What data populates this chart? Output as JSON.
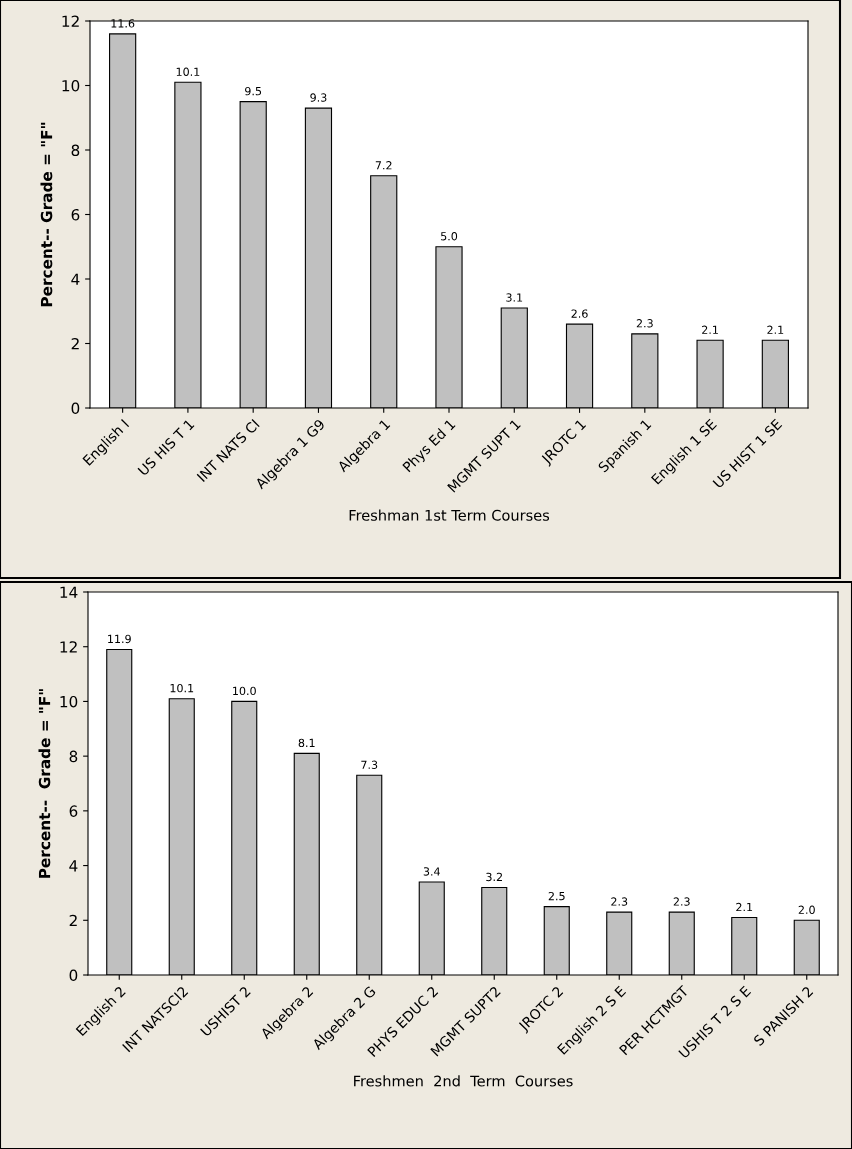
{
  "chart_data": [
    {
      "type": "bar",
      "xlabel": "Freshman 1st Term Courses",
      "ylabel": "Percent-- Grade = \"F\"",
      "categories": [
        "English I",
        "US HIS T 1",
        "INT NATS CI",
        "Algebra 1 G9",
        "Algebra 1",
        "Phys Ed 1",
        "MGMT SUPT 1",
        "JROTC 1",
        "Spanish 1",
        "English 1 SE",
        "US HIST 1 SE"
      ],
      "values": [
        11.6,
        10.1,
        9.5,
        9.3,
        7.2,
        5.0,
        3.1,
        2.6,
        2.3,
        2.1,
        2.1
      ],
      "value_labels": [
        "11.6",
        "10.1",
        "9.5",
        "9.3",
        "7.2",
        "5.0",
        "3.1",
        "2.6",
        "2.3",
        "2.1",
        "2.1"
      ],
      "color": "#c0c0c0",
      "ylim": [
        0,
        12
      ],
      "yticks": [
        0,
        2,
        4,
        6,
        8,
        10,
        12
      ],
      "grid": false
    },
    {
      "type": "bar",
      "xlabel": "Freshmen  2nd  Term  Courses",
      "ylabel": "Percent--  Grade = \"F\"",
      "categories": [
        "English 2",
        "INT NATSCI2",
        "USHIST 2",
        "Algebra 2",
        "Algebra 2 G",
        "PHYS EDUC 2",
        "MGMT SUPT2",
        "JROTC 2",
        "English 2 S E",
        "PER HCTMGT",
        "USHIS T 2 S E",
        "S PANISH 2"
      ],
      "values": [
        11.9,
        10.1,
        10.0,
        8.1,
        7.3,
        3.4,
        3.2,
        2.5,
        2.3,
        2.3,
        2.1,
        2.0
      ],
      "value_labels": [
        "11.9",
        "10.1",
        "10.0",
        "8.1",
        "7.3",
        "3.4",
        "3.2",
        "2.5",
        "2.3",
        "2.3",
        "2.1",
        "2.0"
      ],
      "color": "#c0c0c0",
      "ylim": [
        0,
        14
      ],
      "yticks": [
        0,
        2,
        4,
        6,
        8,
        10,
        12,
        14
      ],
      "grid": false
    }
  ]
}
